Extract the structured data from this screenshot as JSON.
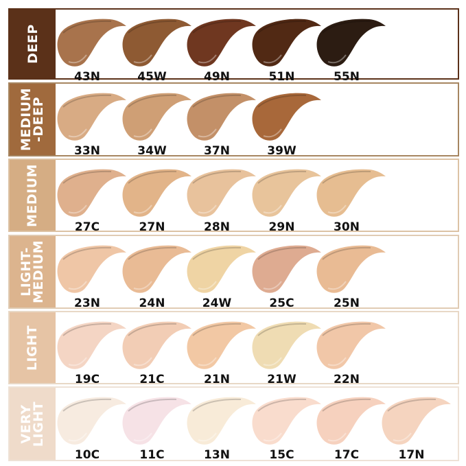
{
  "groups": [
    {
      "name": "DEEP",
      "color": "#5b3119",
      "border": "#5b3119",
      "shades": [
        [
          "43N",
          "#a8734c"
        ],
        [
          "45W",
          "#8e5a33"
        ],
        [
          "49N",
          "#6f3720"
        ],
        [
          "51N",
          "#512914"
        ],
        [
          "55N",
          "#2c1c12"
        ]
      ]
    },
    {
      "name": "MEDIUM\n-DEEP",
      "color": "#a06a3d",
      "border": "#a68560",
      "shades": [
        [
          "33N",
          "#d8ab84"
        ],
        [
          "34W",
          "#cf9f75"
        ],
        [
          "37N",
          "#c39068"
        ],
        [
          "39W",
          "#a8683a"
        ]
      ]
    },
    {
      "name": "MEDIUM",
      "color": "#d5ad84",
      "border": "#dcc2a4",
      "shades": [
        [
          "27C",
          "#dfb08d"
        ],
        [
          "27N",
          "#e2b489"
        ],
        [
          "28N",
          "#e8c29c"
        ],
        [
          "29N",
          "#e8c49b"
        ],
        [
          "30N",
          "#e6bd91"
        ]
      ]
    },
    {
      "name": "LIGHT-\nMEDIUM",
      "color": "#dcb48e",
      "border": "#e0cbb3",
      "shades": [
        [
          "23N",
          "#efc6a6"
        ],
        [
          "24N",
          "#e9bb95"
        ],
        [
          "24W",
          "#efd4a4"
        ],
        [
          "25C",
          "#deab91"
        ],
        [
          "25N",
          "#e9bb94"
        ]
      ]
    },
    {
      "name": "LIGHT",
      "color": "#e6c4a5",
      "border": "#e8d8c6",
      "shades": [
        [
          "19C",
          "#f4d5c4"
        ],
        [
          "21C",
          "#f2cdb5"
        ],
        [
          "21N",
          "#f2c8a4"
        ],
        [
          "21W",
          "#efdcb3"
        ],
        [
          "22N",
          "#f1c7a8"
        ]
      ]
    },
    {
      "name": "VERY\nLIGHT",
      "color": "#efdbca",
      "border": "#eee2d6",
      "shades": [
        [
          "10C",
          "#f7ebe0"
        ],
        [
          "11C",
          "#f6e2e6"
        ],
        [
          "13N",
          "#f8ebd8"
        ],
        [
          "15C",
          "#f9dccd"
        ],
        [
          "17C",
          "#f6d1be"
        ],
        [
          "17N",
          "#f5d4bf"
        ]
      ]
    }
  ]
}
